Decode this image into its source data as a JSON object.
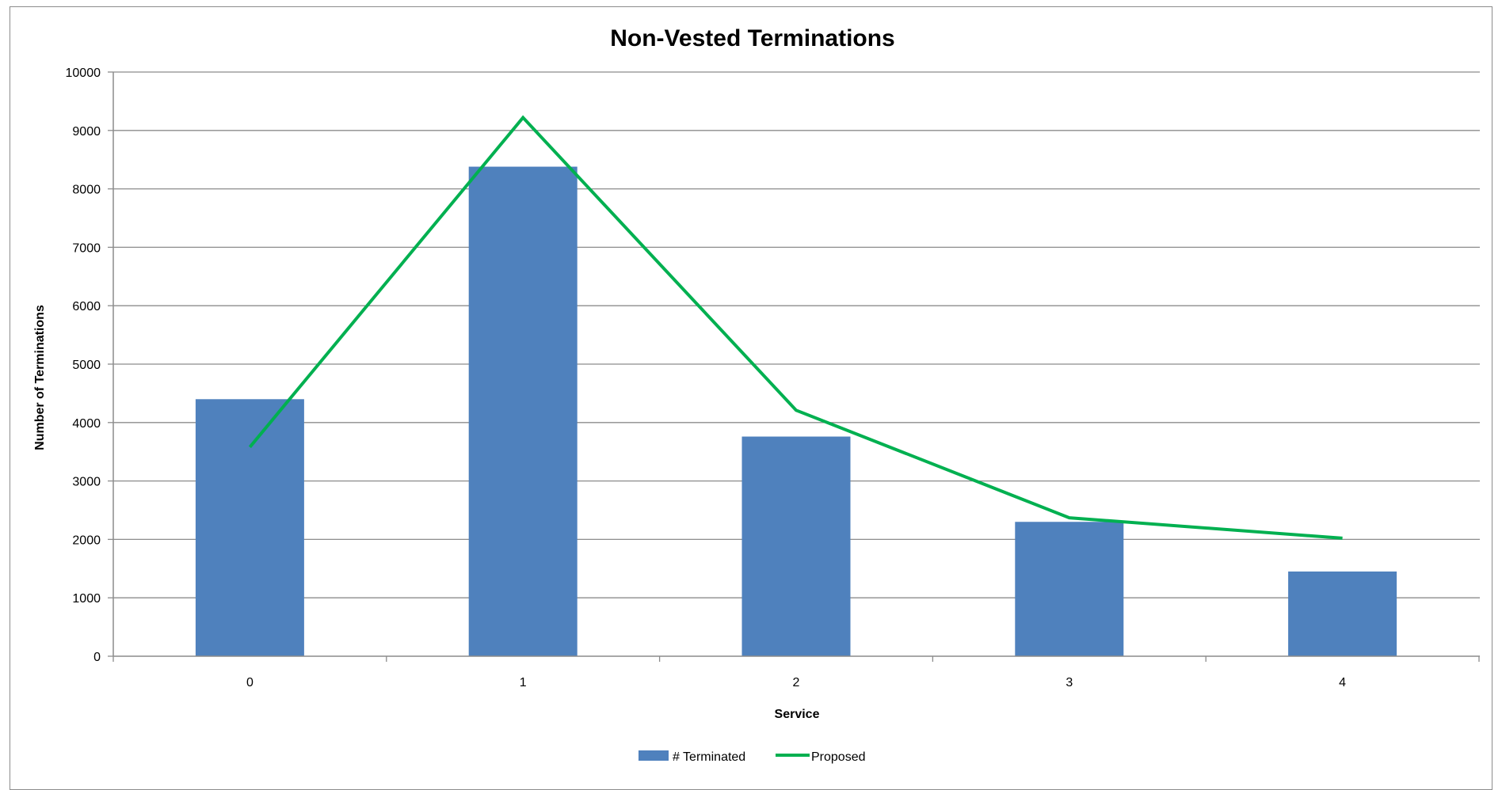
{
  "chart_data": {
    "type": "bar",
    "title": "Non-Vested Terminations",
    "xlabel": "Service",
    "ylabel": "Number of Terminations",
    "categories": [
      "0",
      "1",
      "2",
      "3",
      "4"
    ],
    "ylim": [
      0,
      10000
    ],
    "yticks": [
      "0",
      "1000",
      "2000",
      "3000",
      "4000",
      "5000",
      "6000",
      "7000",
      "8000",
      "9000",
      "10000"
    ],
    "grid": true,
    "legend_position": "bottom",
    "series": [
      {
        "name": "# Terminated",
        "type": "bar",
        "color": "#4F81BD",
        "values": [
          4400,
          8380,
          3760,
          2300,
          1450
        ]
      },
      {
        "name": "Proposed",
        "type": "line",
        "color": "#00B050",
        "values": [
          3580,
          9220,
          4210,
          2370,
          2020
        ]
      }
    ]
  }
}
